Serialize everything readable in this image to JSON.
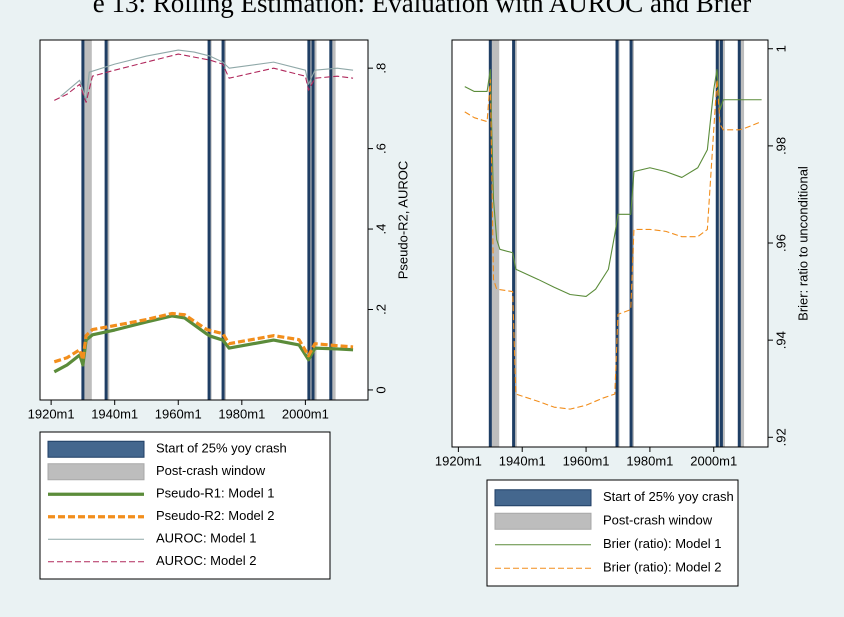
{
  "title": "e 13: Rolling Estimation: Evaluation with AUROC and Brier",
  "chart_data": [
    {
      "type": "line",
      "y_label": "Pseudo-R2, AUROC",
      "y_axis_position": "right",
      "xlim": [
        1916.5,
        2019.7
      ],
      "ylim": [
        -0.025,
        0.87
      ],
      "xticks": [
        {
          "value": 1920,
          "label": "1920m1"
        },
        {
          "value": 1940,
          "label": "1940m1"
        },
        {
          "value": 1960,
          "label": "1960m1"
        },
        {
          "value": 1980,
          "label": "1980m1"
        },
        {
          "value": 2000,
          "label": "2000m1"
        }
      ],
      "yticks": [
        0,
        {
          "value": 0.2,
          "label": ".2"
        },
        {
          "value": 0.4,
          "label": ".4"
        },
        {
          "value": 0.6,
          "label": ".6"
        },
        {
          "value": 0.8,
          "label": ".8"
        }
      ],
      "crashes": {
        "name": "Start of 25% yoy crash",
        "color": "#1f3e64",
        "x": [
          1930,
          1937.3,
          1969.7,
          1974.1,
          2001.1,
          2002.4,
          2008
        ]
      },
      "windows": {
        "name": "Post-crash window",
        "color": "#bdbdbd",
        "start": [
          1930,
          1937.3,
          1969.7,
          1974.1,
          2001.1,
          2008
        ],
        "end": [
          1932.8,
          1938.3,
          1970.5,
          1975,
          2003.5,
          2009.5
        ]
      },
      "series": [
        {
          "name": "Pseudo-R1: Model 1",
          "color": "#5b8c3a",
          "dashed": false,
          "weight": "heavy",
          "x": [
            1921,
            1925,
            1929,
            1930,
            1931,
            1933,
            1940,
            1950,
            1958,
            1962,
            1969,
            1970,
            1974,
            1976,
            1990,
            1998,
            2001,
            2003,
            2010,
            2015
          ],
          "values": [
            0.045,
            0.062,
            0.087,
            0.062,
            0.124,
            0.137,
            0.149,
            0.169,
            0.184,
            0.179,
            0.139,
            0.134,
            0.124,
            0.104,
            0.124,
            0.112,
            0.075,
            0.104,
            0.102,
            0.1
          ]
        },
        {
          "name": "Pseudo-R2: Model 2",
          "color": "#f28e1c",
          "dashed": true,
          "weight": "heavy",
          "x": [
            1921,
            1925,
            1929,
            1930,
            1931,
            1933,
            1940,
            1950,
            1958,
            1962,
            1969,
            1974,
            1976,
            1990,
            1998,
            2001,
            2003,
            2010,
            2015
          ],
          "values": [
            0.07,
            0.08,
            0.1,
            0.075,
            0.135,
            0.15,
            0.16,
            0.175,
            0.19,
            0.187,
            0.15,
            0.14,
            0.115,
            0.135,
            0.125,
            0.085,
            0.115,
            0.11,
            0.107
          ]
        },
        {
          "name": "AUROC: Model 1",
          "color": "#8fa8a8",
          "dashed": false,
          "weight": "light",
          "x": [
            1923,
            1929,
            1931,
            1932,
            1940,
            1950,
            1960,
            1965,
            1970,
            1974,
            1976,
            1990,
            2000,
            2001,
            2003,
            2010,
            2015
          ],
          "values": [
            0.73,
            0.77,
            0.72,
            0.79,
            0.81,
            0.83,
            0.845,
            0.84,
            0.83,
            0.815,
            0.8,
            0.815,
            0.795,
            0.76,
            0.795,
            0.8,
            0.795
          ]
        },
        {
          "name": "AUROC: Model 2",
          "color": "#b0285c",
          "dashed": true,
          "weight": "light",
          "x": [
            1921,
            1925,
            1929,
            1931,
            1933,
            1940,
            1950,
            1960,
            1970,
            1974,
            1976,
            1990,
            2000,
            2001,
            2003,
            2010,
            2015
          ],
          "values": [
            0.72,
            0.735,
            0.76,
            0.715,
            0.78,
            0.795,
            0.815,
            0.835,
            0.82,
            0.81,
            0.775,
            0.8,
            0.78,
            0.745,
            0.775,
            0.78,
            0.775
          ]
        }
      ]
    },
    {
      "type": "line",
      "y_label": "Brier: ratio to unconditional",
      "y_axis_position": "right",
      "xlim": [
        1918,
        2017
      ],
      "ylim": [
        0.918,
        1.0018
      ],
      "xticks": [
        {
          "value": 1920,
          "label": "1920m1"
        },
        {
          "value": 1940,
          "label": "1940m1"
        },
        {
          "value": 1960,
          "label": "1960m1"
        },
        {
          "value": 1980,
          "label": "1980m1"
        },
        {
          "value": 2000,
          "label": "2000m1"
        }
      ],
      "yticks": [
        {
          "value": 0.92,
          "label": ".92"
        },
        {
          "value": 0.94,
          "label": ".94"
        },
        {
          "value": 0.96,
          "label": ".96"
        },
        {
          "value": 0.98,
          "label": ".98"
        },
        1
      ],
      "crashes": {
        "name": "Start of 25% yoy crash",
        "color": "#1f3e64",
        "x": [
          1930,
          1937.3,
          1969.7,
          1974.1,
          2001.1,
          2002.4,
          2008
        ]
      },
      "windows": {
        "name": "Post-crash window",
        "color": "#bdbdbd",
        "start": [
          1930,
          1937.3,
          1969.7,
          1974.1,
          2001.1,
          2008
        ],
        "end": [
          1932.8,
          1938.3,
          1970.5,
          1975,
          2003.5,
          2009.5
        ]
      },
      "series": [
        {
          "name": "Brier (ratio): Model 1",
          "color": "#5b8c3a",
          "dashed": false,
          "weight": "light",
          "x": [
            1922,
            1925,
            1929,
            1930,
            1931,
            1932,
            1933,
            1937,
            1938,
            1945,
            1950,
            1955,
            1960,
            1963,
            1967,
            1969,
            1970,
            1974,
            1975,
            1980,
            1985,
            1990,
            1995,
            1998,
            2000,
            2001,
            2002,
            2003,
            2008,
            2010,
            2015
          ],
          "values": [
            0.9922,
            0.9912,
            0.9912,
            0.9957,
            0.969,
            0.9607,
            0.9587,
            0.958,
            0.9546,
            0.9525,
            0.9509,
            0.9494,
            0.949,
            0.9505,
            0.9546,
            0.9618,
            0.9659,
            0.9659,
            0.9747,
            0.9755,
            0.9747,
            0.9735,
            0.9755,
            0.9792,
            0.9916,
            0.9957,
            0.9875,
            0.9895,
            0.9895,
            0.9895,
            0.9895
          ]
        },
        {
          "name": "Brier (ratio): Model 2",
          "color": "#f28e1c",
          "dashed": true,
          "weight": "light",
          "x": [
            1922,
            1925,
            1929,
            1930,
            1931,
            1932,
            1937,
            1938,
            1945,
            1950,
            1955,
            1960,
            1965,
            1969,
            1970,
            1974,
            1975,
            1980,
            1985,
            1990,
            1995,
            1998,
            2000,
            2001,
            2002,
            2003,
            2008,
            2010,
            2015
          ],
          "values": [
            0.987,
            0.9858,
            0.985,
            0.9936,
            0.9525,
            0.9505,
            0.95,
            0.9289,
            0.9274,
            0.9262,
            0.9258,
            0.9266,
            0.928,
            0.9289,
            0.9453,
            0.9463,
            0.9628,
            0.9628,
            0.9624,
            0.9613,
            0.9613,
            0.9628,
            0.9833,
            0.9936,
            0.9844,
            0.9833,
            0.9833,
            0.9837,
            0.985
          ]
        }
      ]
    }
  ]
}
